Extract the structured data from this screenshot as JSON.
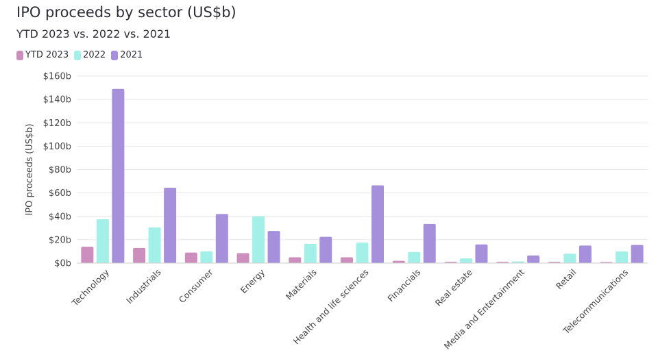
{
  "chart_data": {
    "type": "bar",
    "title": "IPO proceeds by sector (US$b)",
    "subtitle": "YTD 2023 vs. 2022 vs. 2021",
    "ylabel": "IPO proceeds (US$b)",
    "xlabel": "",
    "ylim": [
      0,
      160
    ],
    "yticks": [
      0,
      20,
      40,
      60,
      80,
      100,
      120,
      140,
      160
    ],
    "ytick_labels": [
      "$0b",
      "$20b",
      "$40b",
      "$60b",
      "$80b",
      "$100b",
      "$120b",
      "$140b",
      "$160b"
    ],
    "grid": true,
    "legend_position": "top-left",
    "categories": [
      "Technology",
      "Industrials",
      "Consumer",
      "Energy",
      "Materials",
      "Health and life sciences",
      "Financials",
      "Real estate",
      "Media and Entertainment",
      "Retail",
      "Telecommunications"
    ],
    "series": [
      {
        "name": "YTD 2023",
        "color": "#cc8fbd",
        "values": [
          14,
          13,
          9,
          8.5,
          5,
          5,
          2,
          1,
          1,
          1,
          0.5
        ]
      },
      {
        "name": "2022",
        "color": "#a3f0e8",
        "values": [
          37.5,
          30.5,
          10,
          40,
          16.5,
          17.5,
          9.5,
          4,
          1.5,
          8,
          10
        ]
      },
      {
        "name": "2021",
        "color": "#a68fdb",
        "values": [
          149,
          64.5,
          42,
          27.5,
          22.5,
          66.5,
          33.5,
          16,
          6.5,
          15,
          15.5
        ]
      }
    ]
  }
}
